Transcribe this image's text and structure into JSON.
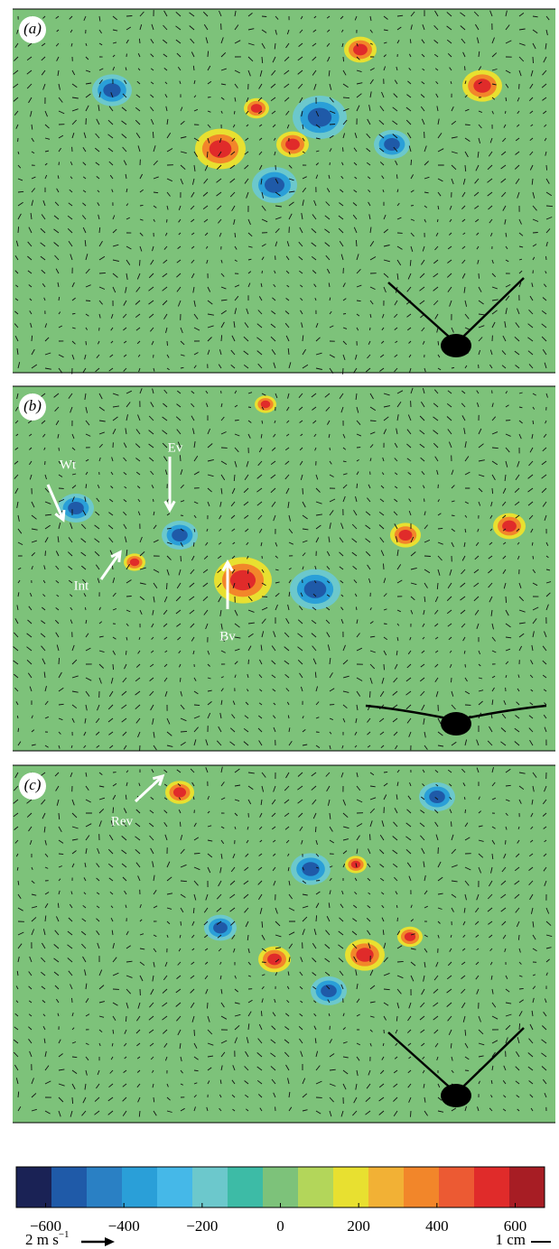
{
  "panels": [
    {
      "label": "(a)"
    },
    {
      "label": "(b)"
    },
    {
      "label": "(c)"
    }
  ],
  "annotations": [
    {
      "panel": 1,
      "text": "Wt"
    },
    {
      "panel": 1,
      "text": "Ev"
    },
    {
      "panel": 1,
      "text": "Int"
    },
    {
      "panel": 1,
      "text": "Bv"
    },
    {
      "panel": 2,
      "text": "Rev"
    }
  ],
  "colorbar": {
    "clim": [
      -675,
      675
    ],
    "colors": [
      "#1a2255",
      "#1f5aa8",
      "#2a80c4",
      "#2a9fd8",
      "#45b8e8",
      "#6cc8cc",
      "#3dbba6",
      "#7dc27a",
      "#b3d65a",
      "#e8e030",
      "#f2b135",
      "#f2862a",
      "#ec5a33",
      "#e02b2a",
      "#a71d24"
    ],
    "ticks": [
      {
        "value": -600,
        "label": "−600"
      },
      {
        "value": -400,
        "label": "−400"
      },
      {
        "value": -200,
        "label": "−200"
      },
      0,
      200,
      400,
      600
    ]
  },
  "velocity_scale": {
    "text": "2 m s",
    "exponent": "−1"
  },
  "length_scale": {
    "text": "1 cm"
  }
}
